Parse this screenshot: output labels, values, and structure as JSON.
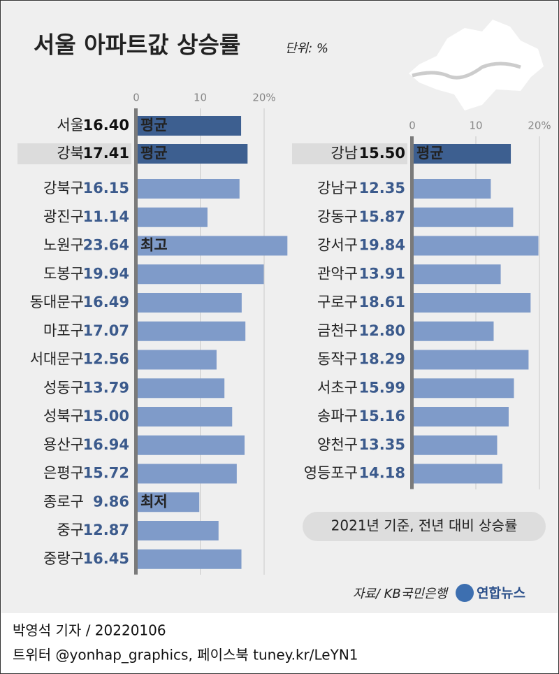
{
  "title": "서울 아파트값 상승률",
  "unit": "단위: %",
  "note": "2021년 기준, 전년 대비 상승률",
  "source": "자료/ KB국민은행",
  "logo": "연합뉴스",
  "byline": "박영석 기자 / 20220106",
  "social": "트위터 @yonhap_graphics, 페이스북 tuney.kr/LeYN1",
  "chart_data": [
    {
      "type": "bar",
      "orientation": "horizontal",
      "categories": [
        "서울",
        "강북",
        "강북구",
        "광진구",
        "노원구",
        "도봉구",
        "동대문구",
        "마포구",
        "서대문구",
        "성동구",
        "성북구",
        "용산구",
        "은평구",
        "종로구",
        "중구",
        "중랑구"
      ],
      "values": [
        16.4,
        17.41,
        16.15,
        11.14,
        23.64,
        19.94,
        16.49,
        17.07,
        12.56,
        13.79,
        15.0,
        16.94,
        15.72,
        9.86,
        12.87,
        16.45
      ],
      "value_labels": [
        "16.40",
        "17.41",
        "16.15",
        "11.14",
        "23.64",
        "19.94",
        "16.49",
        "17.07",
        "12.56",
        "13.79",
        "15.00",
        "16.94",
        "15.72",
        "9.86",
        "12.87",
        "16.45"
      ],
      "bar_labels": [
        "평균",
        "평균",
        null,
        null,
        "최고",
        null,
        null,
        null,
        null,
        null,
        null,
        null,
        null,
        "최저",
        null,
        null
      ],
      "colors": [
        "#3d5f90",
        "#3d5f90",
        "#7f9bc9",
        "#7f9bc9",
        "#7f9bc9",
        "#7f9bc9",
        "#7f9bc9",
        "#7f9bc9",
        "#7f9bc9",
        "#7f9bc9",
        "#7f9bc9",
        "#7f9bc9",
        "#7f9bc9",
        "#7f9bc9",
        "#7f9bc9",
        "#7f9bc9"
      ],
      "highlight_index": 1,
      "xlim": [
        0,
        20
      ],
      "xticks": [
        0,
        10,
        {
          "value": 20,
          "label": "20%"
        }
      ],
      "grid": true
    },
    {
      "type": "bar",
      "orientation": "horizontal",
      "categories": [
        "강남",
        "강남구",
        "강동구",
        "강서구",
        "관악구",
        "구로구",
        "금천구",
        "동작구",
        "서초구",
        "송파구",
        "양천구",
        "영등포구"
      ],
      "values": [
        15.5,
        12.35,
        15.87,
        19.84,
        13.91,
        18.61,
        12.8,
        18.29,
        15.99,
        15.16,
        13.35,
        14.18
      ],
      "value_labels": [
        "15.50",
        "12.35",
        "15.87",
        "19.84",
        "13.91",
        "18.61",
        "12.80",
        "18.29",
        "15.99",
        "15.16",
        "13.35",
        "14.18"
      ],
      "bar_labels": [
        "평균",
        null,
        null,
        null,
        null,
        null,
        null,
        null,
        null,
        null,
        null,
        null
      ],
      "colors": [
        "#3d5f90",
        "#7f9bc9",
        "#7f9bc9",
        "#7f9bc9",
        "#7f9bc9",
        "#7f9bc9",
        "#7f9bc9",
        "#7f9bc9",
        "#7f9bc9",
        "#7f9bc9",
        "#7f9bc9",
        "#7f9bc9"
      ],
      "highlight_index": 0,
      "xlim": [
        0,
        20
      ],
      "xticks": [
        0,
        10,
        {
          "value": 20,
          "label": "20%"
        }
      ],
      "grid": true
    }
  ]
}
